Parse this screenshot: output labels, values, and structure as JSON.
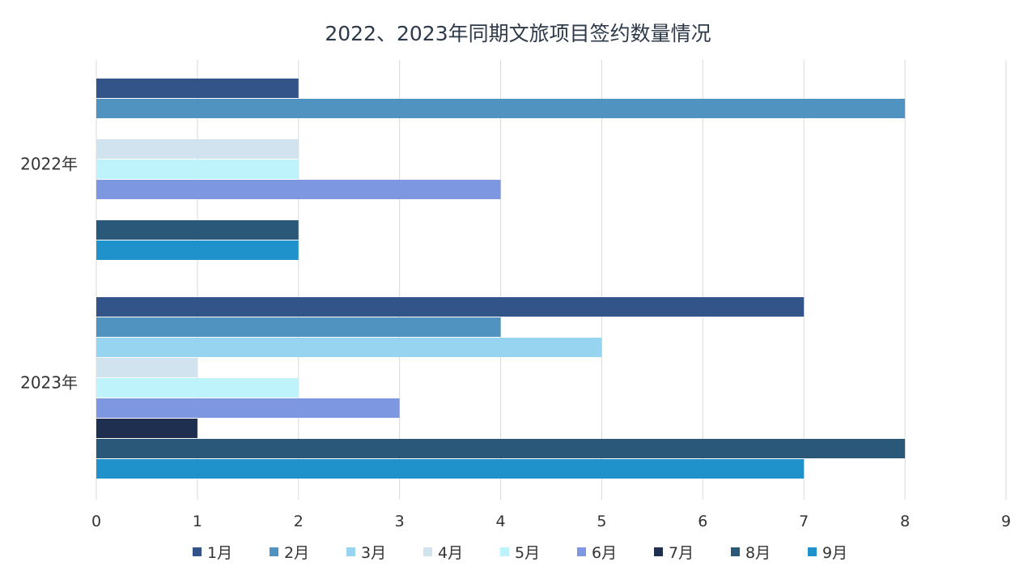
{
  "chart_data": {
    "type": "bar",
    "orientation": "horizontal",
    "title": "2022、2023年同期文旅项目签约数量情况",
    "categories": [
      "2022年",
      "2023年"
    ],
    "xlim": [
      0,
      9
    ],
    "x_ticks": [
      "0",
      "1",
      "2",
      "3",
      "4",
      "5",
      "6",
      "7",
      "8",
      "9"
    ],
    "grid": true,
    "legend_position": "bottom",
    "series": [
      {
        "name": "1月",
        "values": [
          2,
          7
        ],
        "color": "#335488"
      },
      {
        "name": "2月",
        "values": [
          8,
          4
        ],
        "color": "#5092c0"
      },
      {
        "name": "3月",
        "values": [
          0,
          5
        ],
        "color": "#96d4f0"
      },
      {
        "name": "4月",
        "values": [
          2,
          1
        ],
        "color": "#d0e3ef"
      },
      {
        "name": "5月",
        "values": [
          2,
          2
        ],
        "color": "#bff3fb"
      },
      {
        "name": "6月",
        "values": [
          4,
          3
        ],
        "color": "#7d98e0"
      },
      {
        "name": "7月",
        "values": [
          0,
          1
        ],
        "color": "#1f2f50"
      },
      {
        "name": "8月",
        "values": [
          2,
          8
        ],
        "color": "#2a5878"
      },
      {
        "name": "9月",
        "values": [
          2,
          7
        ],
        "color": "#1f92cb"
      }
    ]
  }
}
